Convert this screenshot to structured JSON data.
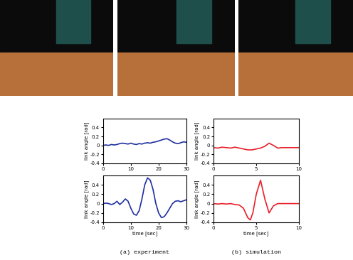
{
  "captions": [
    "(a) experiment",
    "(b) simulation"
  ],
  "chart_data": [
    {
      "type": "line",
      "y_label": "link angle [rad]",
      "xlim": [
        0,
        30
      ],
      "ylim": [
        -0.4,
        0.6
      ],
      "xticks": [
        0,
        10,
        20,
        30
      ],
      "yticks": [
        -0.4,
        -0.2,
        0,
        0.2,
        0.4
      ],
      "x": [
        0,
        1,
        2,
        3,
        4,
        5,
        6,
        7,
        8,
        9,
        10,
        11,
        12,
        13,
        14,
        15,
        16,
        17,
        18,
        19,
        20,
        21,
        22,
        23,
        24,
        25,
        26,
        27,
        28,
        29,
        30
      ],
      "series": [
        {
          "color": "#1f2f9f",
          "values": [
            0.0,
            0.01,
            0.0,
            0.02,
            0.01,
            0.02,
            0.04,
            0.05,
            0.04,
            0.03,
            0.05,
            0.03,
            0.02,
            0.04,
            0.03,
            0.05,
            0.06,
            0.05,
            0.07,
            0.08,
            0.1,
            0.12,
            0.14,
            0.15,
            0.12,
            0.08,
            0.05,
            0.04,
            0.06,
            0.08,
            0.07
          ]
        }
      ]
    },
    {
      "type": "line",
      "y_label": "link angle [rad]",
      "xlim": [
        0,
        10
      ],
      "ylim": [
        -0.4,
        0.6
      ],
      "xticks": [
        0,
        5,
        10
      ],
      "yticks": [
        -0.4,
        -0.2,
        0,
        0.2,
        0.4
      ],
      "x": [
        0,
        0.5,
        1,
        1.5,
        2,
        2.5,
        3,
        3.5,
        4,
        4.5,
        5,
        5.5,
        6,
        6.5,
        7,
        7.5,
        8,
        8.5,
        9,
        9.5,
        10
      ],
      "series": [
        {
          "color": "#e8202a",
          "values": [
            -0.05,
            -0.06,
            -0.04,
            -0.05,
            -0.06,
            -0.04,
            -0.06,
            -0.08,
            -0.1,
            -0.1,
            -0.08,
            -0.06,
            -0.02,
            0.05,
            0.0,
            -0.06,
            -0.05,
            -0.05,
            -0.05,
            -0.05,
            -0.05
          ]
        }
      ]
    },
    {
      "type": "line",
      "y_label": "link angle [rad]",
      "x_label": "time [sec]",
      "xlim": [
        0,
        30
      ],
      "ylim": [
        -0.4,
        0.6
      ],
      "xticks": [
        0,
        10,
        20,
        30
      ],
      "yticks": [
        -0.4,
        -0.2,
        0,
        0.2,
        0.4
      ],
      "x": [
        0,
        1,
        2,
        3,
        4,
        5,
        6,
        7,
        8,
        9,
        10,
        11,
        12,
        13,
        14,
        15,
        16,
        17,
        18,
        19,
        20,
        21,
        22,
        23,
        24,
        25,
        26,
        27,
        28,
        29,
        30
      ],
      "series": [
        {
          "color": "#1f2f9f",
          "values": [
            0.0,
            0.01,
            0.0,
            -0.02,
            0.0,
            0.05,
            -0.02,
            0.03,
            0.1,
            0.05,
            -0.1,
            -0.22,
            -0.25,
            -0.15,
            0.1,
            0.4,
            0.55,
            0.5,
            0.3,
            0.0,
            -0.2,
            -0.3,
            -0.28,
            -0.2,
            -0.1,
            0.0,
            0.05,
            0.06,
            0.04,
            0.06,
            0.08
          ]
        }
      ]
    },
    {
      "type": "line",
      "y_label": "link angle [rad]",
      "x_label": "time [sec]",
      "xlim": [
        0,
        10
      ],
      "ylim": [
        -0.4,
        0.6
      ],
      "xticks": [
        0,
        5,
        10
      ],
      "yticks": [
        -0.4,
        -0.2,
        0,
        0.2,
        0.4
      ],
      "x": [
        0,
        0.5,
        1,
        1.5,
        2,
        2.5,
        3,
        3.5,
        4,
        4.3,
        4.6,
        5,
        5.5,
        6,
        6.5,
        7,
        7.5,
        8,
        9,
        10
      ],
      "series": [
        {
          "color": "#e8202a",
          "values": [
            0.0,
            -0.01,
            0.0,
            -0.01,
            0.0,
            -0.02,
            -0.03,
            -0.1,
            -0.3,
            -0.35,
            -0.2,
            0.2,
            0.5,
            0.1,
            -0.2,
            -0.05,
            0.0,
            0.0,
            0.0,
            0.0
          ]
        }
      ]
    }
  ]
}
